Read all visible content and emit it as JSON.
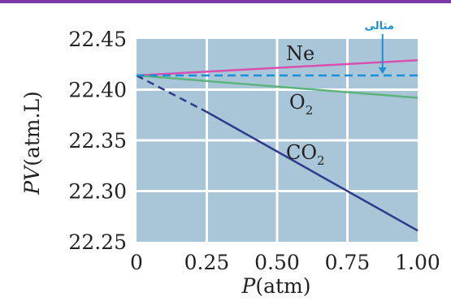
{
  "chart_data": {
    "type": "line",
    "x_tick_labels": [
      "0",
      "0.25",
      "0.50",
      "0.75",
      "1.00"
    ],
    "y_tick_labels": [
      "22.45",
      "22.40",
      "22.35",
      "22.30",
      "22.25"
    ],
    "x_ticks": [
      0,
      0.25,
      0.5,
      0.75,
      1.0
    ],
    "y_ticks": [
      22.45,
      22.4,
      22.35,
      22.3,
      22.25
    ],
    "xlim": [
      0,
      1.0
    ],
    "ylim": [
      22.25,
      22.45
    ],
    "xlabel": "P(atm)",
    "xlabel_parts": {
      "var": "P",
      "unit": "(atm)"
    },
    "ylabel": "PV(atm.L)",
    "ylabel_parts": {
      "var": "PV",
      "unit": "(atm.L)"
    },
    "grid": true,
    "background": "#a9c6d8",
    "series": [
      {
        "name": "Ne",
        "color": "#d94fb0",
        "style": "solid",
        "x": [
          0,
          1.0
        ],
        "y": [
          22.414,
          22.429
        ],
        "label_base": "Ne",
        "label_sub": ""
      },
      {
        "name": "O2",
        "color": "#5cb47a",
        "style": "solid",
        "x": [
          0,
          1.0
        ],
        "y": [
          22.414,
          22.392
        ],
        "label_base": "O",
        "label_sub": "2"
      },
      {
        "name": "CO2",
        "color": "#2e3a8c",
        "style": "dashed-then-solid",
        "x": [
          0,
          0.25,
          1.0
        ],
        "y": [
          22.414,
          22.378,
          22.261
        ],
        "label_base": "CO",
        "label_sub": "2"
      },
      {
        "name": "ideal",
        "color": "#1a8fd6",
        "style": "dashed",
        "x": [
          0,
          1.0
        ],
        "y": [
          22.414,
          22.414
        ]
      }
    ],
    "annotation": {
      "text": "مثالی",
      "color": "#1a8fd6",
      "points_to": {
        "x": 0.875,
        "y": 22.414
      }
    }
  }
}
